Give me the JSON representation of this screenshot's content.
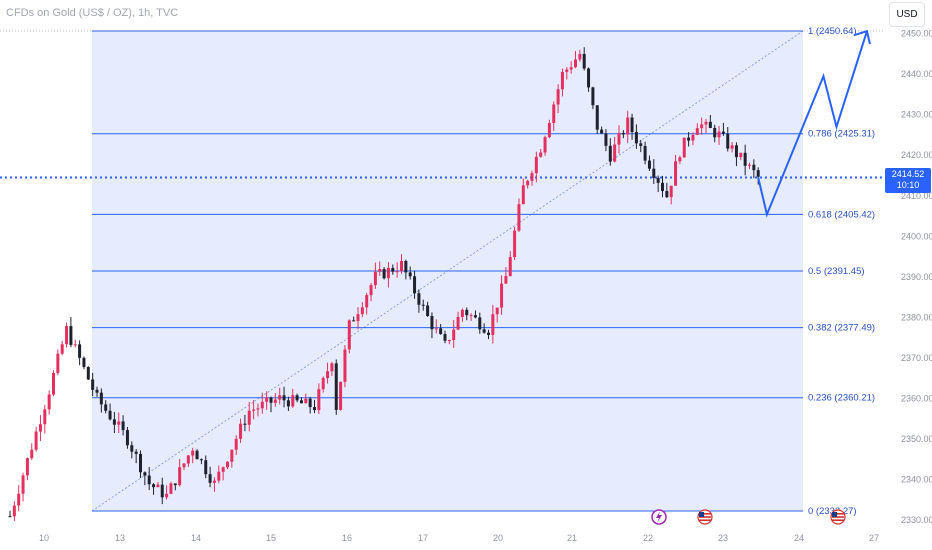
{
  "header": {
    "title": "CFDs on Gold (US$ / OZ), 1h, TVC",
    "currency_button": "USD"
  },
  "current_price": {
    "price": "2414.52",
    "countdown": "10:10",
    "value": 2414.52
  },
  "colors": {
    "fib_fill": "#e3e9fd",
    "fib_line": "#2962ff",
    "up": "#e5305f",
    "down": "#1e222d",
    "projection": "#2962ff",
    "price_line": "#2962ff"
  },
  "chart_data": {
    "type": "candlestick",
    "title": "CFDs on Gold (US$ / OZ), 1h, TVC",
    "ylim": [
      2326,
      2454
    ],
    "y_ticks": [
      2330,
      2340,
      2350,
      2360,
      2370,
      2380,
      2390,
      2400,
      2410,
      2420,
      2430,
      2440,
      2450
    ],
    "x_tick_labels": [
      "10",
      "13",
      "14",
      "15",
      "16",
      "17",
      "20",
      "21",
      "22",
      "23",
      "24",
      "27"
    ],
    "fibonacci_levels": [
      {
        "ratio": "1",
        "price": 2450.64,
        "label": "1 (2450.64)"
      },
      {
        "ratio": "0.786",
        "price": 2425.31,
        "label": "0.786 (2425.31)"
      },
      {
        "ratio": "0.618",
        "price": 2405.42,
        "label": "0.618 (2405.42)"
      },
      {
        "ratio": "0.5",
        "price": 2391.45,
        "label": "0.5 (2391.45)"
      },
      {
        "ratio": "0.382",
        "price": 2377.49,
        "label": "0.382 (2377.49)"
      },
      {
        "ratio": "0.236",
        "price": 2360.21,
        "label": "0.236 (2360.21)"
      },
      {
        "ratio": "0",
        "price": 2332.27,
        "label": "0 (2332.27)"
      }
    ],
    "price_path": [
      [
        0,
        2331
      ],
      [
        9,
        2362
      ],
      [
        13,
        2377
      ],
      [
        20,
        2360
      ],
      [
        27,
        2350
      ],
      [
        32,
        2339
      ],
      [
        36,
        2336
      ],
      [
        42,
        2348
      ],
      [
        47,
        2339
      ],
      [
        55,
        2357
      ],
      [
        62,
        2360
      ],
      [
        70,
        2358
      ],
      [
        74,
        2370
      ],
      [
        75,
        2358
      ],
      [
        78,
        2378
      ],
      [
        84,
        2390
      ],
      [
        90,
        2393
      ],
      [
        96,
        2380
      ],
      [
        100,
        2373
      ],
      [
        104,
        2382
      ],
      [
        110,
        2377
      ],
      [
        114,
        2390
      ],
      [
        118,
        2412
      ],
      [
        122,
        2422
      ],
      [
        127,
        2440
      ],
      [
        131,
        2445
      ],
      [
        135,
        2427
      ],
      [
        138,
        2420
      ],
      [
        142,
        2428
      ],
      [
        147,
        2418
      ],
      [
        151,
        2410
      ],
      [
        154,
        2421
      ],
      [
        158,
        2428
      ],
      [
        163,
        2425
      ],
      [
        169,
        2418
      ],
      [
        172,
        2414.5
      ]
    ],
    "projection_path": [
      [
        172,
        2414.52
      ],
      [
        174,
        2405.4
      ],
      [
        187,
        2439.5
      ],
      [
        190,
        2427
      ],
      [
        197,
        2450.6
      ]
    ]
  }
}
